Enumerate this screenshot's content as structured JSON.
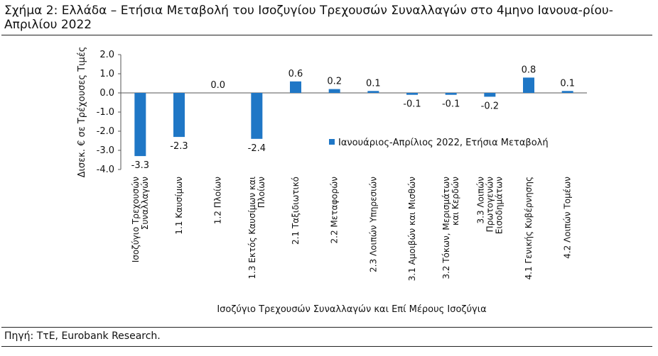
{
  "figure": {
    "title": "Σχήμα 2: Ελλάδα – Ετήσια Μεταβολή του Ισοζυγίου Τρεχουσών Συναλλαγών στο 4μηνο Ιανουα-ρίου-Απριλίου 2022",
    "source": "Πηγή: ΤτΕ, Eurobank Research."
  },
  "chart_data": {
    "type": "bar",
    "title": "",
    "xlabel": "Ισοζύγιο Τρεχουσών Συναλλαγών και Επί Μέρους Ισοζύγια",
    "ylabel": "Δισεκ. € σε Τρέχουσες Τιμές",
    "ylim": [
      -4.0,
      2.0
    ],
    "yticks": [
      "2.0",
      "1.0",
      "0.0",
      "-1.0",
      "-2.0",
      "-3.0",
      "-4.0"
    ],
    "grid": false,
    "legend_position": "right",
    "bar_color": "#1f77c6",
    "categories": [
      "Ισοζύγιο Τρεχουσών Συναλλαγών",
      "1.1 Καυσίμων",
      "1.2 Πλοίων",
      "1.3 Εκτός Καυσίμων και Πλοίων",
      "2.1 Ταξιδιωτικό",
      "2.2 Μεταφορών",
      "2.3 Λοιπών Υπηρεσιών",
      "3.1 Αμοιβών και Μισθών",
      "3.2 Τόκων, Μερισμάτων και Κερδών",
      "3.3 Λοιπών Πρωτογενών Εισοδημάτων",
      "4.1 Γενικής Κυβέρνησης",
      "4.2 Λοιπών Τομέων"
    ],
    "series": [
      {
        "name": "Ιανουάριος-Απρίλιος 2022, Ετήσια Μεταβολή",
        "values": [
          -3.3,
          -2.3,
          0.0,
          -2.4,
          0.6,
          0.2,
          0.1,
          -0.1,
          -0.1,
          -0.2,
          0.8,
          0.1
        ],
        "labels": [
          "-3.3",
          "-2.3",
          "0.0",
          "-2.4",
          "0.6",
          "0.2",
          "0.1",
          "-0.1",
          "-0.1",
          "-0.2",
          "0.8",
          "0.1"
        ]
      }
    ]
  }
}
